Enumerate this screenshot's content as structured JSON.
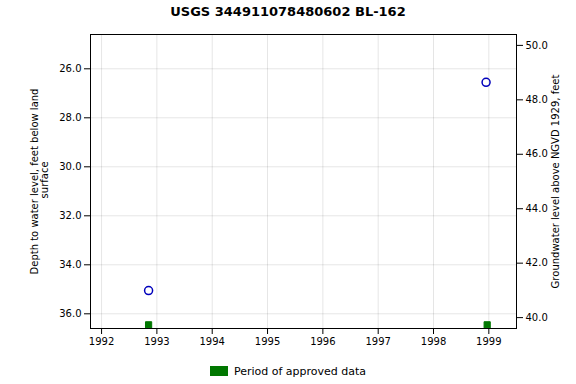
{
  "chart_data": {
    "type": "scatter",
    "title": "USGS 344911078480602 BL-162",
    "ylabel": "Depth to water level, feet below land\n surface",
    "y2label": "Groundwater level above NGVD 1929, feet",
    "xlim": [
      1991.8,
      1999.5
    ],
    "xticks": [
      1992,
      1993,
      1994,
      1995,
      1996,
      1997,
      1998,
      1999
    ],
    "ylim": [
      36.6,
      24.6
    ],
    "yticks": [
      {
        "value": 26.0,
        "label": "26.0"
      },
      {
        "value": 28.0,
        "label": "28.0"
      },
      {
        "value": 30.0,
        "label": "30.0"
      },
      {
        "value": 32.0,
        "label": "32.0"
      },
      {
        "value": 34.0,
        "label": "34.0"
      },
      {
        "value": 36.0,
        "label": "36.0"
      }
    ],
    "y2lim": [
      39.6,
      50.4
    ],
    "y2ticks": [
      {
        "value": 40.0,
        "label": "40.0"
      },
      {
        "value": 42.0,
        "label": "42.0"
      },
      {
        "value": 44.0,
        "label": "44.0"
      },
      {
        "value": 46.0,
        "label": "46.0"
      },
      {
        "value": 48.0,
        "label": "48.0"
      },
      {
        "value": 50.0,
        "label": "50.0"
      }
    ],
    "grid": true,
    "legend": "bottom",
    "series": [
      {
        "x": [
          1992.85,
          1998.95
        ],
        "values": [
          35.05,
          26.55
        ],
        "color": "#0000bb",
        "marker": "circle"
      },
      {
        "name": "Period of approved data",
        "x": [
          1992.85,
          1998.97
        ],
        "values": [
          36.45,
          36.45
        ],
        "color": "#007700",
        "marker": "square"
      }
    ]
  }
}
